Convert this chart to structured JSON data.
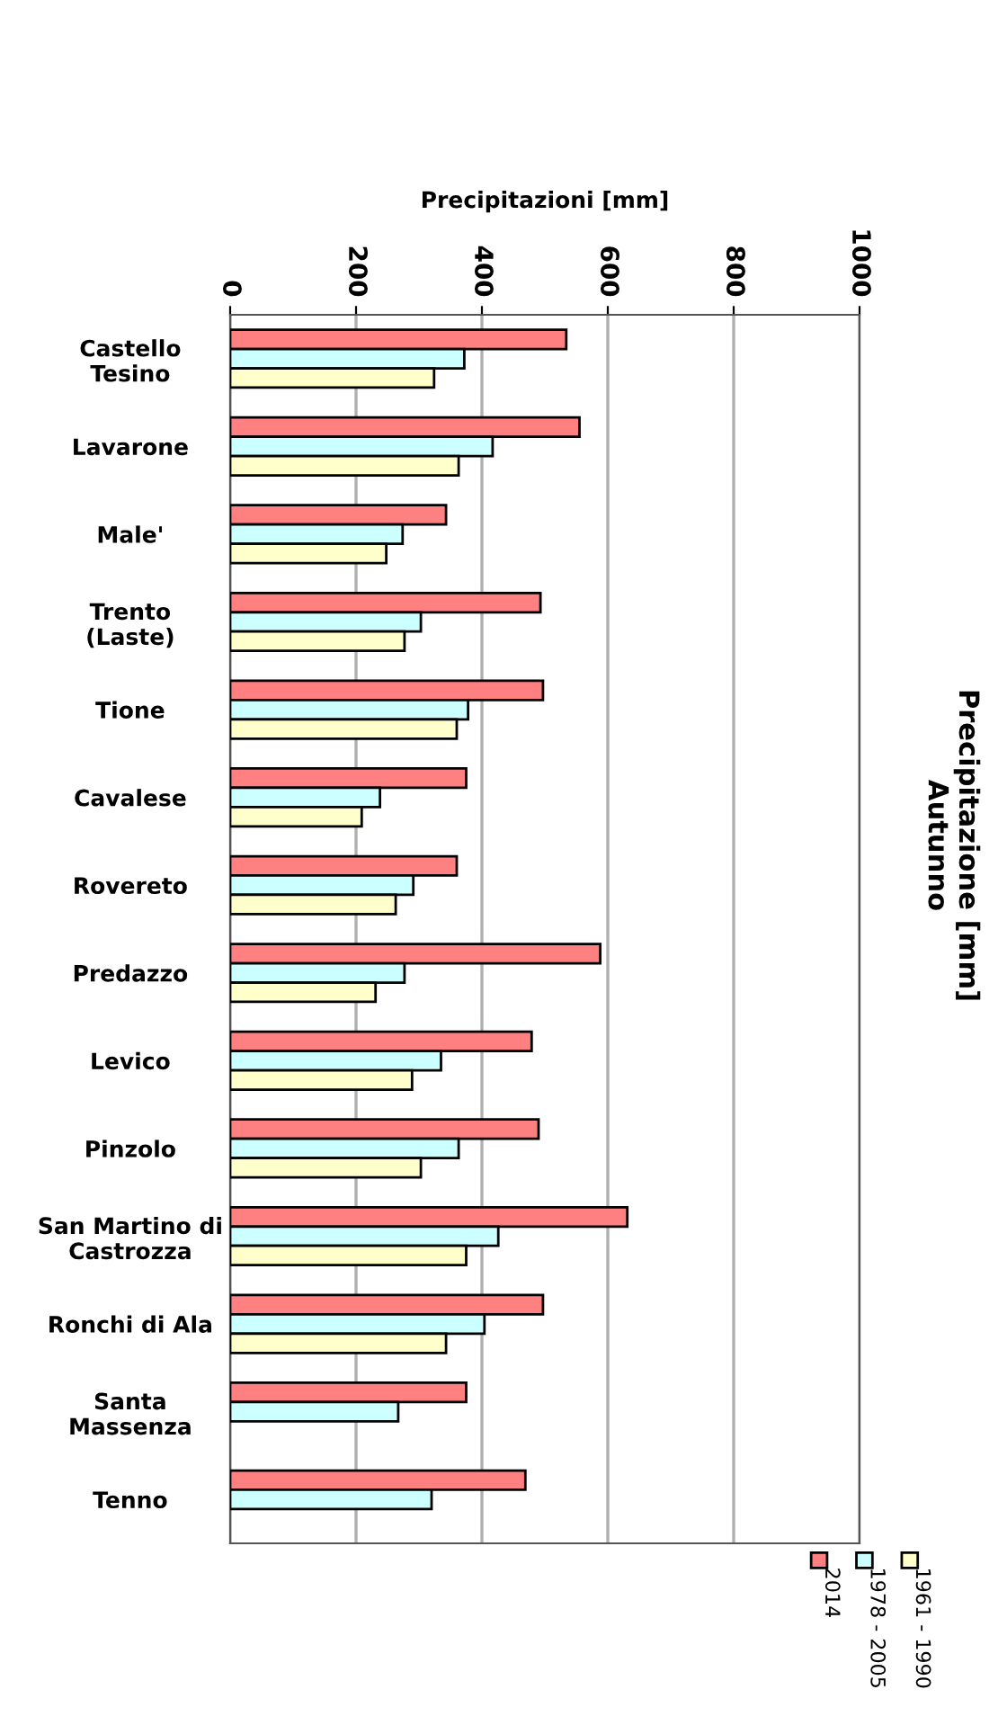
{
  "chart_data": {
    "type": "bar",
    "orientation": "horizontal",
    "title": "Precipitazione [mm]\nAutunno",
    "xlabel": "Precipitazioni [mm]",
    "categories": [
      "Castello\nTesino",
      "Lavarone",
      "Male'",
      "Trento\n(Laste)",
      "Tione",
      "Cavalese",
      "Rovereto",
      "Predazzo",
      "Levico",
      "Pinzolo",
      "San Martino di\nCastrozza",
      "Ronchi di Ala",
      "Santa\nMassenza",
      "Tenno"
    ],
    "series": [
      {
        "name": "2014",
        "color": "#ff8080",
        "values": [
          534,
          555,
          343,
          493,
          497,
          375,
          360,
          588,
          479,
          490,
          631,
          497,
          375,
          469
        ]
      },
      {
        "name": "1978 - 2005",
        "color": "#ccffff",
        "values": [
          372,
          417,
          274,
          303,
          378,
          238,
          291,
          277,
          335,
          363,
          426,
          404,
          267,
          320
        ]
      },
      {
        "name": "1961 - 1990",
        "color": "#ffffcc",
        "values": [
          324,
          363,
          248,
          277,
          360,
          209,
          263,
          231,
          289,
          303,
          375,
          343,
          null,
          null
        ]
      }
    ],
    "xlim": [
      0,
      1000
    ],
    "xticks": [
      0,
      200,
      400,
      600,
      800,
      1000
    ],
    "grid": "x",
    "legend": "bottom right"
  }
}
